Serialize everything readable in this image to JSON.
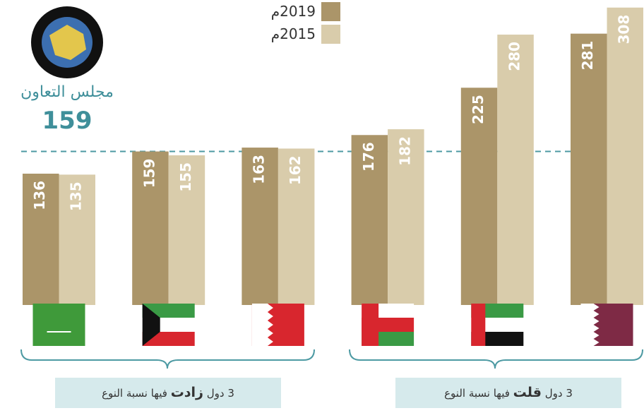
{
  "chart_data": {
    "type": "bar",
    "categories": [
      null,
      null,
      null,
      null,
      null,
      null
    ],
    "series": [
      {
        "name": "2019م",
        "color": "#ab9569",
        "values": [
          136,
          159,
          163,
          176,
          225,
          281
        ]
      },
      {
        "name": "2015م",
        "color": "#d9ccab",
        "values": [
          135,
          155,
          162,
          182,
          280,
          308
        ]
      }
    ],
    "ylim": [
      0,
      310
    ],
    "reference": {
      "label": "مجلس التعاون",
      "value": 159
    },
    "annotations": [
      {
        "parts": [
          "3 دول ",
          "زادت",
          " فيها نسبة النوع"
        ]
      },
      {
        "parts": [
          "3 دول ",
          "قلت",
          " فيها نسبة النوع"
        ]
      }
    ]
  }
}
